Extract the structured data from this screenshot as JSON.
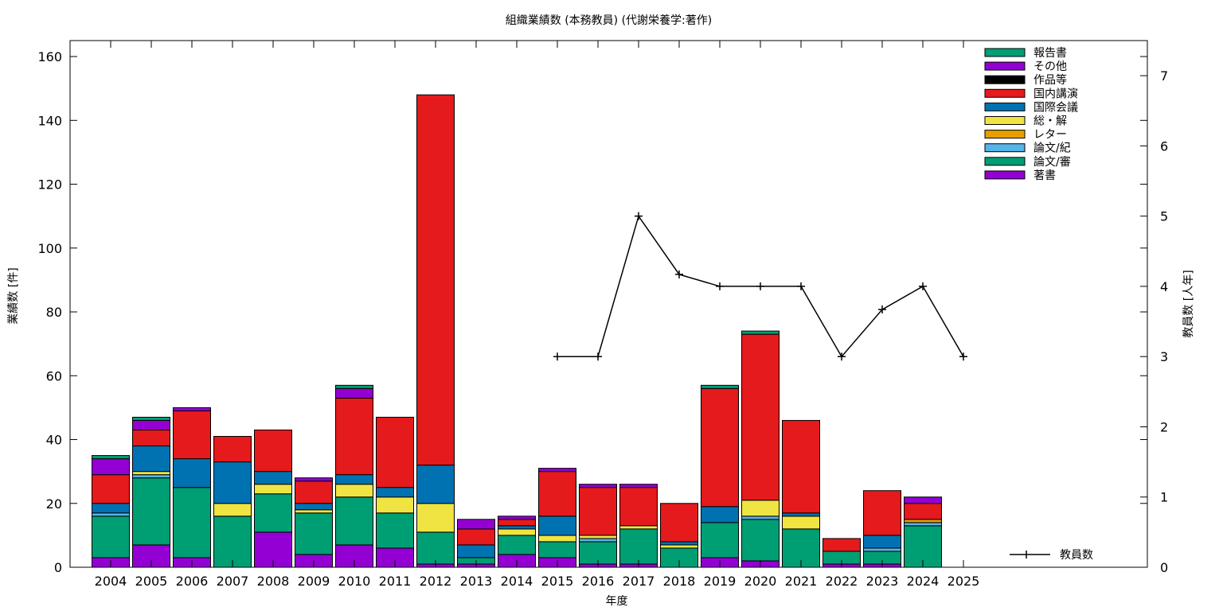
{
  "chart_data": {
    "type": "bar",
    "title": "組織業績数 (本務教員) (代謝栄養学:著作)",
    "xlabel": "年度",
    "ylabel": "業績数 [件]",
    "y2label": "教員数 [人年]",
    "ylim": [
      0,
      165
    ],
    "y2lim": [
      0,
      7.5
    ],
    "yticks": [
      0,
      20,
      40,
      60,
      80,
      100,
      120,
      140,
      160
    ],
    "y2ticks": [
      0,
      1,
      2,
      3,
      4,
      5,
      6,
      7
    ],
    "stacked": true,
    "grid": false,
    "legend_position": "top-right",
    "categories": [
      "2004",
      "2005",
      "2006",
      "2007",
      "2008",
      "2009",
      "2010",
      "2011",
      "2012",
      "2013",
      "2014",
      "2015",
      "2016",
      "2017",
      "2018",
      "2019",
      "2020",
      "2021",
      "2022",
      "2023",
      "2024",
      "2025"
    ],
    "series": [
      {
        "name": "著書",
        "color": "#9400D3",
        "values": [
          3,
          7,
          3,
          0,
          11,
          4,
          7,
          6,
          1,
          1,
          4,
          3,
          1,
          1,
          0,
          3,
          2,
          0,
          1,
          1,
          0,
          0
        ]
      },
      {
        "name": "論文/審",
        "color": "#009E73",
        "values": [
          13,
          21,
          22,
          16,
          12,
          13,
          15,
          11,
          10,
          2,
          6,
          5,
          7,
          11,
          6,
          11,
          13,
          12,
          4,
          4,
          13,
          0
        ]
      },
      {
        "name": "論文/紀",
        "color": "#56B4E9",
        "values": [
          1,
          1,
          0,
          0,
          0,
          0,
          0,
          0,
          0,
          0,
          0,
          0,
          1,
          0,
          0,
          0,
          1,
          0,
          0,
          1,
          1,
          0
        ]
      },
      {
        "name": "レター",
        "color": "#E69F00",
        "values": [
          0,
          0,
          0,
          0,
          0,
          0,
          0,
          0,
          0,
          0,
          0,
          0,
          0,
          0,
          0,
          0,
          0,
          0,
          0,
          0,
          1,
          0
        ]
      },
      {
        "name": "総・解",
        "color": "#F0E442",
        "values": [
          0,
          1,
          0,
          4,
          3,
          1,
          4,
          5,
          9,
          0,
          2,
          2,
          1,
          1,
          1,
          0,
          5,
          4,
          0,
          0,
          0,
          0
        ]
      },
      {
        "name": "国際会議",
        "color": "#0072B2",
        "values": [
          3,
          8,
          9,
          13,
          4,
          2,
          3,
          3,
          12,
          4,
          1,
          6,
          0,
          0,
          1,
          5,
          0,
          1,
          0,
          4,
          0,
          0
        ]
      },
      {
        "name": "国内講演",
        "color": "#E41A1C",
        "values": [
          9,
          5,
          15,
          8,
          13,
          7,
          24,
          22,
          116,
          5,
          2,
          14,
          15,
          12,
          12,
          37,
          52,
          29,
          4,
          14,
          5,
          0
        ]
      },
      {
        "name": "作品等",
        "color": "#000000",
        "values": [
          0,
          0,
          0,
          0,
          0,
          0,
          0,
          0,
          0,
          0,
          0,
          0,
          0,
          0,
          0,
          0,
          0,
          0,
          0,
          0,
          0,
          0
        ]
      },
      {
        "name": "その他",
        "color": "#9400D3",
        "values": [
          5,
          3,
          1,
          0,
          0,
          1,
          3,
          0,
          0,
          3,
          1,
          1,
          1,
          1,
          0,
          0,
          0,
          0,
          0,
          0,
          2,
          0
        ]
      },
      {
        "name": "報告書",
        "color": "#009E73",
        "values": [
          1,
          1,
          0,
          0,
          0,
          0,
          1,
          0,
          0,
          0,
          0,
          0,
          0,
          0,
          0,
          1,
          1,
          0,
          0,
          0,
          0,
          0
        ]
      }
    ],
    "line_series": {
      "name": "教員数",
      "color": "#000000",
      "axis": "y2",
      "x": [
        "2015",
        "2016",
        "2017",
        "2018",
        "2019",
        "2020",
        "2021",
        "2022",
        "2023",
        "2024",
        "2025"
      ],
      "values": [
        3,
        3,
        5,
        4.17,
        4,
        4,
        4,
        3,
        3.67,
        4,
        3
      ]
    }
  }
}
